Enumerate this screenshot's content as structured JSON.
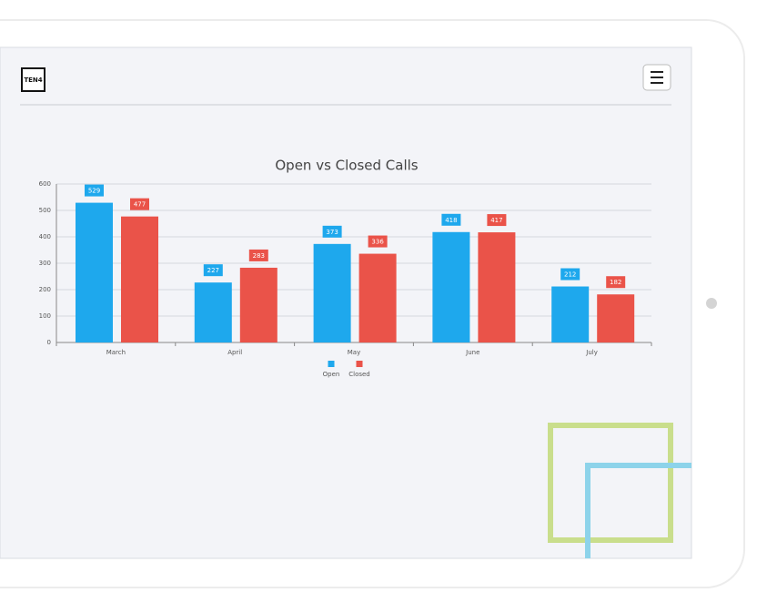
{
  "header": {
    "logo": "TEN4"
  },
  "chart_data": {
    "type": "bar",
    "title": "Open vs Closed Calls",
    "categories": [
      "March",
      "April",
      "May",
      "June",
      "July"
    ],
    "series": [
      {
        "name": "Open",
        "color": "#1ea8ed",
        "values": [
          529,
          227,
          373,
          418,
          212
        ]
      },
      {
        "name": "Closed",
        "color": "#ea5349",
        "values": [
          477,
          283,
          336,
          417,
          182
        ]
      }
    ],
    "ylim": [
      0,
      600
    ],
    "yticks": [
      0,
      100,
      200,
      300,
      400,
      500,
      600
    ],
    "grid": true
  }
}
